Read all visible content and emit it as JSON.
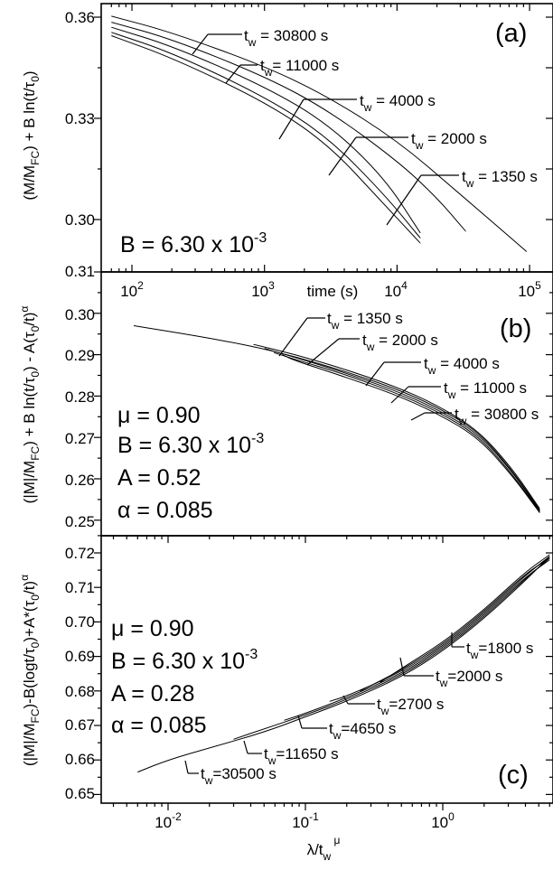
{
  "chart_data": [
    {
      "panel_label": "(a)",
      "type": "line",
      "x_scale": "log",
      "xlim": [
        70,
        150000
      ],
      "ylim": [
        0.288,
        0.365
      ],
      "xlabel": "time (s)",
      "ylabel": "(M/M_FC) + B ln(t/τ_0)",
      "y_ticks": [
        "0.36",
        "0.33",
        "0.30"
      ],
      "y_tick_values": [
        0.36,
        0.33,
        0.3
      ],
      "x_ticks": [
        "10^2",
        "10^3",
        "10^4",
        "10^5"
      ],
      "x_tick_values": [
        100,
        1000,
        10000,
        100000
      ],
      "params": [
        "B = 6.30 x 10^-3"
      ],
      "series": [
        {
          "name": "t_w = 30800 s",
          "x": [
            70,
            200,
            1000,
            3000,
            10000,
            30000,
            95000
          ],
          "y": [
            0.3603,
            0.3555,
            0.3455,
            0.3365,
            0.3235,
            0.3075,
            0.2905
          ]
        },
        {
          "name": "t_w = 11000 s",
          "x": [
            70,
            200,
            1000,
            3000,
            10000,
            20000,
            33000
          ],
          "y": [
            0.3585,
            0.3535,
            0.3425,
            0.3325,
            0.3175,
            0.3065,
            0.2965
          ]
        },
        {
          "name": "t_w = 4000 s",
          "x": [
            70,
            200,
            1000,
            3000,
            8000,
            15000
          ],
          "y": [
            0.357,
            0.3515,
            0.3395,
            0.3285,
            0.3125,
            0.296
          ]
        },
        {
          "name": "t_w = 2000 s",
          "x": [
            70,
            200,
            1000,
            3000,
            8000,
            15000
          ],
          "y": [
            0.3555,
            0.3495,
            0.3365,
            0.3245,
            0.3075,
            0.2945
          ]
        },
        {
          "name": "t_w = 1350 s",
          "x": [
            70,
            200,
            1000,
            3000,
            8000,
            15000
          ],
          "y": [
            0.3545,
            0.348,
            0.335,
            0.3225,
            0.3045,
            0.293
          ]
        }
      ]
    },
    {
      "panel_label": "(b)",
      "type": "line",
      "x_scale": "log",
      "xlim": [
        70,
        150000
      ],
      "ylim": [
        0.248,
        0.312
      ],
      "ylabel": "(|M|/M_FC) + B ln(t/τ_0) - A(τ_0/t)^α",
      "y_ticks": [
        "0.31",
        "0.30",
        "0.29",
        "0.28",
        "0.27",
        "0.26",
        "0.25"
      ],
      "y_tick_values": [
        0.31,
        0.3,
        0.29,
        0.28,
        0.27,
        0.26,
        0.25
      ],
      "params": [
        "μ = 0.90",
        "B = 6.30 x 10^-3",
        "A = 0.52",
        "α = 0.085"
      ],
      "series": [
        {
          "name": "t_w = 1350 s",
          "x": [
            0.007,
            0.02,
            0.05,
            0.1,
            0.2,
            0.5,
            1,
            2,
            3.5,
            5.5
          ],
          "y": [
            0.297,
            0.2945,
            0.292,
            0.2895,
            0.2865,
            0.282,
            0.2775,
            0.2715,
            0.262,
            0.2525
          ]
        },
        {
          "name": "t_w = 2000 s",
          "x": [
            0.05,
            0.1,
            0.2,
            0.5,
            1,
            2,
            3.5,
            5.5
          ],
          "y": [
            0.2925,
            0.29,
            0.287,
            0.2825,
            0.278,
            0.2718,
            0.2625,
            0.2528
          ]
        },
        {
          "name": "t_w = 4000 s",
          "x": [
            0.06,
            0.1,
            0.2,
            0.5,
            1,
            2,
            3.5,
            5.5
          ],
          "y": [
            0.2915,
            0.2893,
            0.2862,
            0.2815,
            0.277,
            0.271,
            0.2618,
            0.2522
          ]
        },
        {
          "name": "t_w = 11000 s",
          "x": [
            0.07,
            0.1,
            0.2,
            0.5,
            1,
            2,
            3.5,
            5.5
          ],
          "y": [
            0.2905,
            0.2888,
            0.2858,
            0.281,
            0.2765,
            0.2705,
            0.2612,
            0.252
          ]
        },
        {
          "name": "t_w = 30800 s",
          "x": [
            0.08,
            0.1,
            0.2,
            0.5,
            1,
            2,
            3.5,
            5.5
          ],
          "y": [
            0.29,
            0.2885,
            0.2852,
            0.2805,
            0.276,
            0.27,
            0.2608,
            0.2518
          ]
        }
      ]
    },
    {
      "panel_label": "(c)",
      "type": "line",
      "x_scale": "log",
      "xlim": [
        0.003,
        6.5
      ],
      "ylim": [
        0.65,
        0.725
      ],
      "xlabel": "λ/t_w^μ",
      "ylabel": "(|M|/M_FC)-B(logt/τ_0)+A*(τ_0/t)^α",
      "y_ticks": [
        "0.72",
        "0.71",
        "0.70",
        "0.69",
        "0.68",
        "0.67",
        "0.66",
        "0.65"
      ],
      "y_tick_values": [
        0.72,
        0.71,
        0.7,
        0.69,
        0.68,
        0.67,
        0.66,
        0.65
      ],
      "x_ticks": [
        "10^-2",
        "10^-1",
        "10^0"
      ],
      "x_tick_values": [
        0.01,
        0.1,
        1
      ],
      "params": [
        "μ = 0.90",
        "B = 6.30 x 10^-3",
        "A = 0.28",
        "α = 0.085"
      ],
      "series": [
        {
          "name": "t_w =30500 s",
          "x": [
            0.006,
            0.01,
            0.02,
            0.05,
            0.1,
            0.2,
            0.5,
            1,
            2,
            4,
            6
          ],
          "y": [
            0.6565,
            0.66,
            0.6635,
            0.668,
            0.6725,
            0.677,
            0.684,
            0.6915,
            0.701,
            0.712,
            0.719
          ]
        },
        {
          "name": "t_w =11650 s",
          "x": [
            0.03,
            0.05,
            0.1,
            0.2,
            0.5,
            1,
            2,
            4,
            6
          ],
          "y": [
            0.666,
            0.669,
            0.673,
            0.6775,
            0.6845,
            0.692,
            0.7015,
            0.7125,
            0.7185
          ]
        },
        {
          "name": "t_w =4650 s",
          "x": [
            0.07,
            0.1,
            0.2,
            0.5,
            1,
            2,
            4,
            6
          ],
          "y": [
            0.6715,
            0.6735,
            0.678,
            0.685,
            0.6925,
            0.702,
            0.713,
            0.718
          ]
        },
        {
          "name": "t_w =2700 s",
          "x": [
            0.15,
            0.2,
            0.5,
            1,
            2,
            4,
            6
          ],
          "y": [
            0.677,
            0.6785,
            0.6855,
            0.693,
            0.7025,
            0.7135,
            0.719
          ]
        },
        {
          "name": "t_w =2000 s",
          "x": [
            0.25,
            0.5,
            1,
            2,
            4,
            6
          ],
          "y": [
            0.68,
            0.686,
            0.6935,
            0.703,
            0.714,
            0.7185
          ]
        },
        {
          "name": "t_w =1800 s",
          "x": [
            0.35,
            0.5,
            1,
            2,
            4,
            6
          ],
          "y": [
            0.6825,
            0.6865,
            0.694,
            0.7035,
            0.7145,
            0.7195
          ]
        }
      ]
    }
  ]
}
